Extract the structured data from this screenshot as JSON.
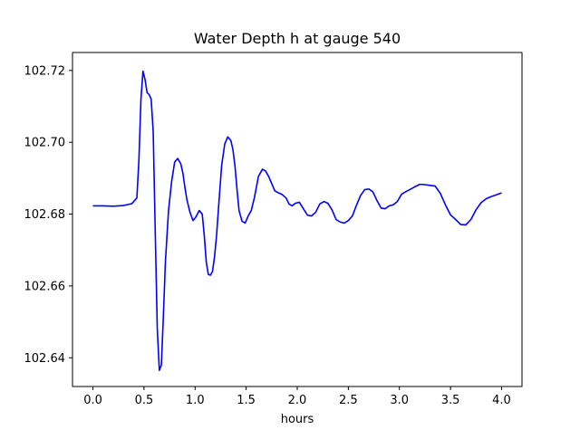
{
  "chart_data": {
    "type": "line",
    "title": "Water Depth h at gauge 540",
    "xlabel": "hours",
    "ylabel": "",
    "xlim": [
      -0.2,
      4.2
    ],
    "ylim": [
      102.632,
      102.725
    ],
    "xticks": [
      0.0,
      0.5,
      1.0,
      1.5,
      2.0,
      2.5,
      3.0,
      3.5,
      4.0
    ],
    "xtick_labels": [
      "0.0",
      "0.5",
      "1.0",
      "1.5",
      "2.0",
      "2.5",
      "3.0",
      "3.5",
      "4.0"
    ],
    "yticks": [
      102.64,
      102.66,
      102.68,
      102.7,
      102.72
    ],
    "ytick_labels": [
      "102.64",
      "102.66",
      "102.68",
      "102.70",
      "102.72"
    ],
    "grid": false,
    "series": [
      {
        "color": "#0000ff",
        "x": [
          0.0,
          0.1,
          0.2,
          0.3,
          0.38,
          0.43,
          0.45,
          0.47,
          0.49,
          0.51,
          0.53,
          0.55,
          0.57,
          0.59,
          0.61,
          0.63,
          0.65,
          0.67,
          0.69,
          0.71,
          0.74,
          0.77,
          0.8,
          0.83,
          0.86,
          0.88,
          0.9,
          0.92,
          0.95,
          0.98,
          1.01,
          1.04,
          1.07,
          1.09,
          1.11,
          1.13,
          1.15,
          1.17,
          1.19,
          1.21,
          1.23,
          1.26,
          1.29,
          1.32,
          1.35,
          1.37,
          1.39,
          1.41,
          1.43,
          1.46,
          1.49,
          1.52,
          1.55,
          1.58,
          1.62,
          1.66,
          1.69,
          1.72,
          1.75,
          1.78,
          1.81,
          1.85,
          1.89,
          1.92,
          1.95,
          1.98,
          2.02,
          2.06,
          2.1,
          2.14,
          2.18,
          2.22,
          2.26,
          2.3,
          2.34,
          2.38,
          2.42,
          2.46,
          2.5,
          2.54,
          2.58,
          2.62,
          2.66,
          2.7,
          2.74,
          2.78,
          2.82,
          2.86,
          2.9,
          2.94,
          2.98,
          3.02,
          3.06,
          3.1,
          3.15,
          3.2,
          3.25,
          3.3,
          3.35,
          3.4,
          3.45,
          3.5,
          3.55,
          3.6,
          3.65,
          3.7,
          3.75,
          3.8,
          3.85,
          3.9,
          3.95,
          4.0
        ],
        "y": [
          102.6823,
          102.6823,
          102.6822,
          102.6824,
          102.6829,
          102.6845,
          102.695,
          102.712,
          102.7198,
          102.7175,
          102.7138,
          102.7133,
          102.712,
          102.703,
          102.675,
          102.648,
          102.6365,
          102.638,
          102.652,
          102.667,
          102.681,
          102.689,
          102.6945,
          102.6955,
          102.694,
          102.6915,
          102.6875,
          102.684,
          102.6805,
          102.6782,
          102.6793,
          102.681,
          102.68,
          102.674,
          102.6665,
          102.6632,
          102.663,
          102.664,
          102.668,
          102.674,
          102.682,
          102.6935,
          102.6995,
          102.7015,
          102.7005,
          102.698,
          102.6935,
          102.687,
          102.681,
          102.678,
          102.6775,
          102.6795,
          102.681,
          102.6845,
          102.6905,
          102.6925,
          102.692,
          102.6905,
          102.6885,
          102.6865,
          102.686,
          102.6855,
          102.6845,
          102.6828,
          102.6823,
          102.683,
          102.6833,
          102.6815,
          102.6797,
          102.6795,
          102.6805,
          102.6828,
          102.6835,
          102.683,
          102.6812,
          102.6785,
          102.6778,
          102.6775,
          102.6782,
          102.6795,
          102.6825,
          102.6852,
          102.6868,
          102.687,
          102.6862,
          102.6838,
          102.6817,
          102.6815,
          102.6823,
          102.6826,
          102.6835,
          102.6855,
          102.6862,
          102.6868,
          102.6876,
          102.6883,
          102.6882,
          102.688,
          102.6878,
          102.6858,
          102.6826,
          102.6798,
          102.6785,
          102.6771,
          102.677,
          102.6785,
          102.6812,
          102.6832,
          102.6843,
          102.6849,
          102.6854,
          102.6859
        ]
      }
    ]
  }
}
